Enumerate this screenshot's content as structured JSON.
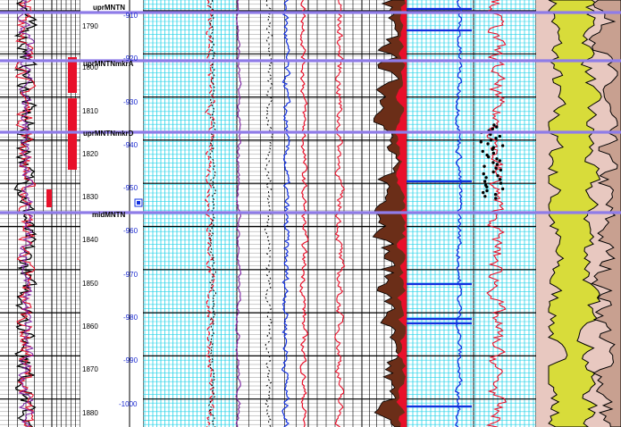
{
  "colors": {
    "tops_line": "#8f7ce8",
    "grid_black": "#000000",
    "grid_cyan": "#27d3e8",
    "gamma_black": "#000000",
    "gamma_red": "#e8102a",
    "gamma_purple": "#7b1fa2",
    "resistivity_blue": "#1230e0",
    "resistivity_red": "#e8102a",
    "shale_brown": "#6b2e18",
    "sand_yellow": "#d8dc3a",
    "shale_pink": "#e8c8c0",
    "depth_text": "#000000",
    "subsea_text": "#1c2bd0"
  },
  "measured_depth_labels": [
    "1790",
    "1800",
    "1810",
    "1820",
    "1830",
    "1840",
    "1850",
    "1860",
    "1870",
    "1880"
  ],
  "subsea_depth_labels": [
    "-910",
    "-920",
    "-930",
    "-940",
    "-950",
    "-960",
    "-970",
    "-980",
    "-990",
    "-1000"
  ],
  "formation_tops": [
    {
      "name": "uprMNTN"
    },
    {
      "name": "uprMNTNmkrA"
    },
    {
      "name": "uprMNTNmkrD"
    },
    {
      "name": "midMNTN"
    }
  ],
  "tracks": [
    {
      "name": "gamma-ray-track"
    },
    {
      "name": "depth-track"
    },
    {
      "name": "porosity-track"
    },
    {
      "name": "sonic-track"
    },
    {
      "name": "resistivity-track"
    },
    {
      "name": "shale-volume-track"
    },
    {
      "name": "deep-resistivity-track"
    },
    {
      "name": "core-track"
    },
    {
      "name": "lithology-track"
    }
  ]
}
